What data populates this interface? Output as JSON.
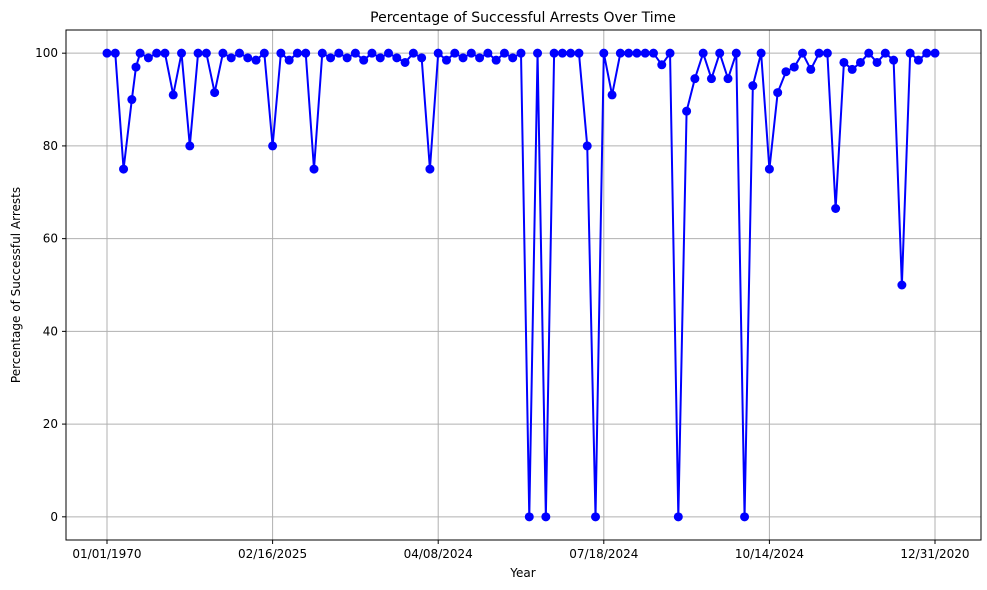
{
  "chart_data": {
    "type": "line",
    "title": "Percentage of Successful Arrests Over Time",
    "xlabel": "Year",
    "ylabel": "Percentage of Successful Arrests",
    "ylim": [
      -5,
      105
    ],
    "yticks": [
      0,
      20,
      40,
      60,
      80,
      100
    ],
    "xtick_labels": [
      "01/01/1970",
      "02/16/2025",
      "04/08/2024",
      "07/18/2024",
      "10/14/2024",
      "12/31/2020"
    ],
    "grid": true,
    "series": [
      {
        "color": "#0000ff",
        "marker": "circle",
        "x": [
          0,
          10,
          20,
          30,
          35,
          40,
          50,
          60,
          70,
          80,
          90,
          100,
          110,
          120,
          130,
          140,
          150,
          160,
          170,
          180,
          190,
          200,
          210,
          220,
          230,
          240,
          250,
          260,
          270,
          280,
          290,
          300,
          310,
          320,
          330,
          340,
          350,
          360,
          370,
          380,
          390,
          400,
          410,
          420,
          430,
          440,
          450,
          460,
          470,
          480,
          490,
          500,
          510,
          520,
          530,
          540,
          550,
          560,
          570,
          580,
          590,
          600,
          610,
          620,
          630,
          640,
          650,
          660,
          670,
          680,
          690,
          700,
          710,
          720,
          730,
          740,
          750,
          760,
          770,
          780,
          790,
          800,
          810,
          820,
          830,
          840,
          850,
          860,
          870,
          880,
          890,
          900,
          910,
          920,
          930,
          940,
          950,
          960,
          970,
          980,
          990,
          1000
        ],
        "y": [
          100,
          100,
          75,
          90,
          97,
          100,
          99,
          100,
          100,
          91,
          100,
          80,
          100,
          100,
          91.5,
          100,
          99,
          100,
          99,
          98.5,
          100,
          80,
          100,
          98.5,
          100,
          100,
          75,
          100,
          99,
          100,
          99,
          100,
          98.5,
          100,
          99,
          100,
          99,
          98,
          100,
          99,
          75,
          100,
          98.5,
          100,
          99,
          100,
          99,
          100,
          98.5,
          100,
          99,
          100,
          0,
          100,
          0,
          100,
          100,
          100,
          100,
          80,
          0,
          100,
          91,
          100,
          100,
          100,
          100,
          100,
          97.5,
          100,
          0,
          87.5,
          94.5,
          100,
          94.5,
          100,
          94.5,
          100,
          0,
          93,
          100,
          75,
          91.5,
          96,
          97,
          100,
          96.5,
          100,
          100,
          66.5,
          98,
          96.5,
          98,
          100,
          98,
          100,
          98.5,
          50,
          100,
          98.5,
          100,
          100
        ]
      }
    ]
  }
}
